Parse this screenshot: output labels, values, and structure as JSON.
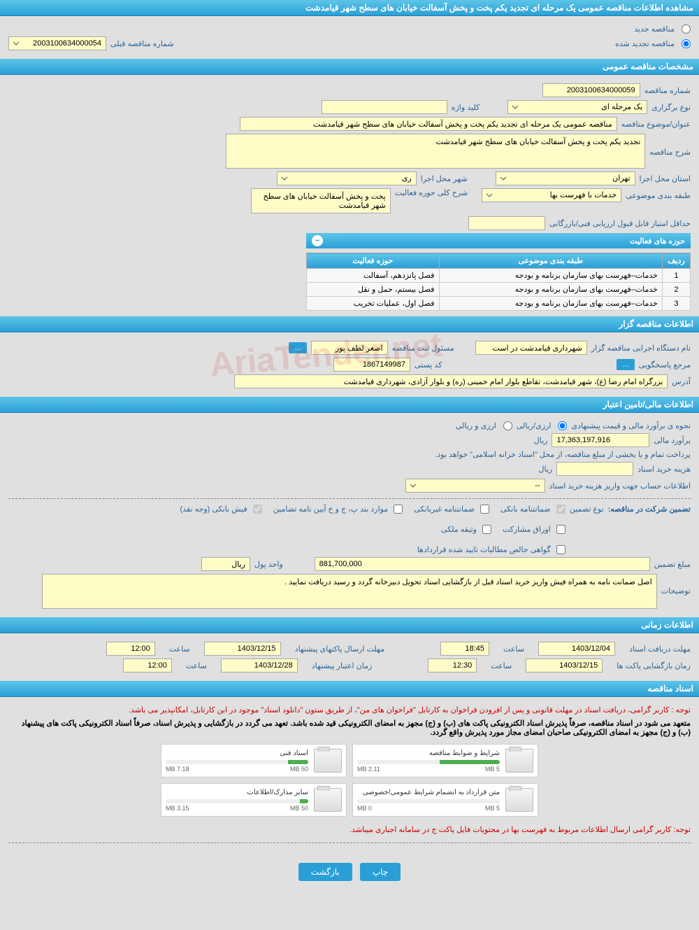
{
  "page_title": "مشاهده اطلاعات مناقصه عمومی یک مرحله ای تجدید یکم پخت و پخش آسفالت خیابان های سطح شهر قیامدشت",
  "tender_type": {
    "new_label": "مناقصه جدید",
    "renewed_label": "مناقصه تجدید شده",
    "prev_num_label": "شماره مناقصه قبلی",
    "prev_num_value": "2003100634000054"
  },
  "section_general": {
    "title": "مشخصات مناقصه عمومی",
    "tender_num_label": "شماره مناقصه",
    "tender_num_value": "2003100634000059",
    "type_label": "نوع برگزاری",
    "type_value": "یک مرحله ای",
    "keyword_label": "کلید واژه",
    "keyword_value": "",
    "subject_label": "عنوان/موضوع مناقصه",
    "subject_value": "مناقصه عمومی یک مرحله ای تجدید یکم پخت و پخش آسفالت خیابان های سطح شهر قیامدشت",
    "desc_label": "شرح مناقصه",
    "desc_value": "تجدید یکم پخت و پخش آسفالت خیابان های سطح شهر قیامدشت",
    "province_label": "استان محل اجرا",
    "province_value": "تهران",
    "city_label": "شهر محل اجرا",
    "city_value": "ری",
    "category_label": "طبقه بندی موضوعی",
    "category_value": "خدمات با فهرست بها",
    "activity_scope_label": "شرح کلی حوزه فعالیت",
    "activity_scope_value": "پخت و پخش آسفالت خیابان های سطح شهر قیامدشت",
    "min_score_label": "حداقل امتیاز قابل قبول ارزیابی فنی/بازرگانی",
    "min_score_value": ""
  },
  "activity_table": {
    "title": "حوزه های فعالیت",
    "col_row": "ردیف",
    "col_category": "طبقه بندی موضوعی",
    "col_field": "حوزه فعالیت",
    "rows": [
      {
        "n": "1",
        "cat": "خدمات–فهرست بهای سازمان برنامه و بودجه",
        "field": "فصل پانزدهم، آسفالت"
      },
      {
        "n": "2",
        "cat": "خدمات–فهرست بهای سازمان برنامه و بودجه",
        "field": "فصل بیستم، حمل و نقل"
      },
      {
        "n": "3",
        "cat": "خدمات–فهرست بهای سازمان برنامه و بودجه",
        "field": "فصل اول، عملیات تخریب"
      }
    ]
  },
  "section_owner": {
    "title": "اطلاعات مناقصه گزار",
    "org_label": "نام دستگاه اجرایی مناقصه گزار",
    "org_value": "شهرداری قیامدشت در است",
    "officer_label": "مسئول ثبت مناقصه",
    "officer_value": "اصغر لطف پور",
    "contact_label": "مرجع پاسخگویی",
    "postal_label": "کد پستی",
    "postal_value": "1867149987",
    "address_label": "آدرس",
    "address_value": "بزرگراه امام رضا (ع)، شهر قیامدشت، تقاطع بلوار امام خمینی (ره) و بلوار آزادی، شهرداری قیامدشت"
  },
  "section_finance": {
    "title": "اطلاعات مالی/تامین اعتبار",
    "estimate_method_label": "نحوه ی برآورد مالی و قیمت پیشنهادی",
    "opt_rial": "ارزی/ریالی",
    "opt_both": "ارزی و ریالی",
    "estimate_label": "برآورد مالی",
    "estimate_value": "17,363,197,916",
    "currency": "ریال",
    "payment_note": "پرداخت تمام و یا بخشی از مبلغ مناقصه، از محل \"اسناد خزانه اسلامی\" خواهد بود.",
    "doc_fee_label": "هزینه خرید اسناد",
    "doc_fee_value": "",
    "account_label": "اطلاعات حساب جهت واریز هزینه خرید اسناد",
    "account_value": "--",
    "guarantee_header": "تضمین شرکت در مناقصه:",
    "guarantee_type_label": "نوع تضمین",
    "g1": "ضمانتنامه بانکی",
    "g2": "ضمانتنامه غیربانکی",
    "g3": "موارد بند پ، ج و خ آیین نامه تضامین",
    "g4": "فیش بانکی (وجه نقد)",
    "g5": "اوراق مشارکت",
    "g6": "وثیقه ملکی",
    "g7": "گواهی خالص مطالبات تایید شده قراردادها",
    "guarantee_amount_label": "مبلغ تضمین",
    "guarantee_amount_value": "881,700,000",
    "unit_label": "واحد پول",
    "unit_value": "ریال",
    "notes_label": "توضیحات",
    "notes_value": "اصل ضمانت نامه به همراه فیش واریز خرید اسناد قبل از بازگشایی اسناد تحویل دبیرخانه گردد و رسید دریافت نمایید ."
  },
  "section_time": {
    "title": "اطلاعات زمانی",
    "receive_label": "مهلت دریافت اسناد",
    "receive_date": "1403/12/04",
    "receive_time_label": "ساعت",
    "receive_time": "18:45",
    "send_label": "مهلت ارسال پاکتهای پیشنهاد",
    "send_date": "1403/12/15",
    "send_time": "12:00",
    "open_label": "زمان بازگشایی پاکت ها",
    "open_date": "1403/12/15",
    "open_time": "12:30",
    "valid_label": "زمان اعتبار پیشنهاد",
    "valid_date": "1403/12/28",
    "valid_time": "12:00"
  },
  "section_docs": {
    "title": "اسناد مناقصه",
    "notice1": "توجه : کاربر گرامی، دریافت اسناد در مهلت قانونی و پس از افزودن فراخوان به کارتابل \"فراخوان های من\"، از طریق ستون \"دانلود اسناد\" موجود در این کارتابل، امکانپذیر می باشد.",
    "notice2": "متعهد می شود در اسناد مناقصه، صرفاً پذیرش اسناد الکترونیکی پاکت های (ب) و (ج) مجهز به امضای الکترونیکی قید شده باشد. تعهد می گردد در بازگشایی و پذیرش اسناد، صرفاً اسناد الکترونیکی پاکت های پیشنهاد (ب) و (ج) مجهز به امضای الکترونیکی صاحبان امضای مجاز مورد پذیرش واقع گردد.",
    "notice3": "توجه: کاربر گرامی ارسال اطلاعات مربوط به فهرست بها در محتویات فایل پاکت ج در سامانه اجباری میباشد.",
    "docs": [
      {
        "title": "شرایط و ضوابط مناقصه",
        "used": "2.11 MB",
        "max": "5 MB",
        "pct": 42
      },
      {
        "title": "اسناد فنی",
        "used": "7.18 MB",
        "max": "50 MB",
        "pct": 14
      },
      {
        "title": "متن قرارداد به انضمام شرایط عمومی/خصوصی",
        "used": "0 MB",
        "max": "5 MB",
        "pct": 0
      },
      {
        "title": "سایر مدارک/اطلاعات",
        "used": "3.15 MB",
        "max": "50 MB",
        "pct": 6
      }
    ]
  },
  "buttons": {
    "print": "چاپ",
    "back": "بازگشت",
    "more": "..."
  },
  "watermark": "AriaTender.net"
}
